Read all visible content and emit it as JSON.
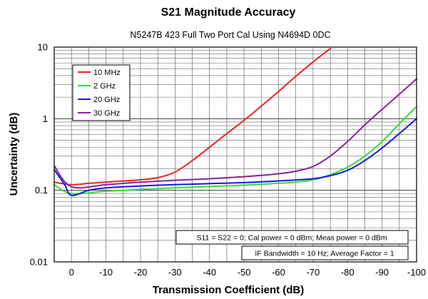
{
  "chart_data": {
    "type": "line",
    "title": "S21 Magnitude Accuracy",
    "subtitle": "N5247B 423 Full Two Port Cal Using N4694D 0DC",
    "xlabel": "Transmission Coefficient (dB)",
    "ylabel": "Uncertainty (dB)",
    "xlim": [
      5,
      -100
    ],
    "ylim": [
      0.01,
      10
    ],
    "yscale": "log",
    "x_ticks": [
      0,
      -10,
      -20,
      -30,
      -40,
      -50,
      -60,
      -70,
      -80,
      -90,
      -100
    ],
    "x_tick_labels": [
      "0",
      "-10",
      "-20",
      "-30",
      "-40",
      "-50",
      "-60",
      "-70",
      "-80",
      "-90",
      "-100"
    ],
    "y_ticks": [
      0.01,
      0.1,
      1,
      10
    ],
    "y_tick_labels": [
      "0.01",
      "0.1",
      "1",
      "10"
    ],
    "grid": true,
    "legend_position": "top-left",
    "series": [
      {
        "name": "10 MHz",
        "color": "#ee2222",
        "x": [
          5,
          0,
          -5,
          -10,
          -15,
          -20,
          -25,
          -30,
          -35,
          -40,
          -45,
          -50,
          -55,
          -60,
          -65,
          -70,
          -75
        ],
        "y": [
          0.13,
          0.12,
          0.125,
          0.13,
          0.135,
          0.14,
          0.15,
          0.18,
          0.26,
          0.4,
          0.62,
          0.95,
          1.5,
          2.4,
          3.9,
          6.2,
          9.6
        ]
      },
      {
        "name": "2 GHz",
        "color": "#33dd33",
        "x": [
          5,
          0,
          -10,
          -20,
          -30,
          -40,
          -50,
          -60,
          -65,
          -70,
          -75,
          -80,
          -85,
          -90,
          -95,
          -100
        ],
        "y": [
          0.12,
          0.09,
          0.097,
          0.103,
          0.108,
          0.113,
          0.118,
          0.125,
          0.13,
          0.14,
          0.165,
          0.21,
          0.3,
          0.48,
          0.85,
          1.48
        ]
      },
      {
        "name": "20 GHz",
        "color": "#1a1add",
        "x": [
          5,
          2,
          0,
          -5,
          -10,
          -20,
          -30,
          -40,
          -50,
          -60,
          -70,
          -75,
          -80,
          -85,
          -90,
          -95,
          -100
        ],
        "y": [
          0.195,
          0.12,
          0.085,
          0.1,
          0.108,
          0.115,
          0.12,
          0.124,
          0.128,
          0.135,
          0.145,
          0.16,
          0.19,
          0.26,
          0.39,
          0.62,
          1.0
        ]
      },
      {
        "name": "30 GHz",
        "color": "#882299",
        "x": [
          5,
          0,
          -10,
          -20,
          -30,
          -40,
          -50,
          -60,
          -65,
          -70,
          -75,
          -80,
          -85,
          -90,
          -95,
          -100
        ],
        "y": [
          0.22,
          0.112,
          0.12,
          0.13,
          0.138,
          0.145,
          0.155,
          0.17,
          0.185,
          0.215,
          0.3,
          0.48,
          0.82,
          1.35,
          2.2,
          3.6
        ]
      }
    ],
    "annotations": [
      "S11 = S22 = 0; Cal power = 0 dBm; Meas power = 0 dBm",
      "IF Bandwidth = 10 Hz; Average Factor = 1"
    ]
  }
}
